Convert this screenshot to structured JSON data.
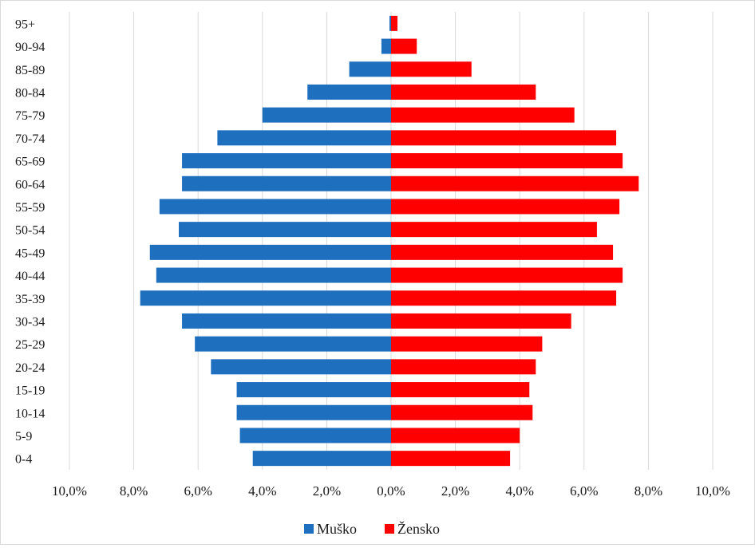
{
  "chart_data": {
    "type": "bar",
    "orientation": "horizontal-population-pyramid",
    "categories": [
      "0-4",
      "5-9",
      "10-14",
      "15-19",
      "20-24",
      "25-29",
      "30-34",
      "35-39",
      "40-44",
      "45-49",
      "50-54",
      "55-59",
      "60-64",
      "65-69",
      "70-74",
      "75-79",
      "80-84",
      "85-89",
      "90-94",
      "95+"
    ],
    "series": [
      {
        "name": "Muško",
        "color": "#1f6fbf",
        "values": [
          4.3,
          4.7,
          4.8,
          4.8,
          5.6,
          6.1,
          6.5,
          7.8,
          7.3,
          7.5,
          6.6,
          7.2,
          6.5,
          6.5,
          5.4,
          4.0,
          2.6,
          1.3,
          0.3,
          0.05
        ]
      },
      {
        "name": "Žensko",
        "color": "#ff0000",
        "values": [
          3.7,
          4.0,
          4.4,
          4.3,
          4.5,
          4.7,
          5.6,
          7.0,
          7.2,
          6.9,
          6.4,
          7.1,
          7.7,
          7.2,
          7.0,
          5.7,
          4.5,
          2.5,
          0.8,
          0.2
        ]
      }
    ],
    "x_ticks": [
      "10,0%",
      "8,0%",
      "6,0%",
      "4,0%",
      "2,0%",
      "0,0%",
      "2,0%",
      "4,0%",
      "6,0%",
      "8,0%",
      "10,0%"
    ],
    "xlim": [
      -10,
      10
    ],
    "grid": "vertical",
    "legend": "bottom"
  }
}
